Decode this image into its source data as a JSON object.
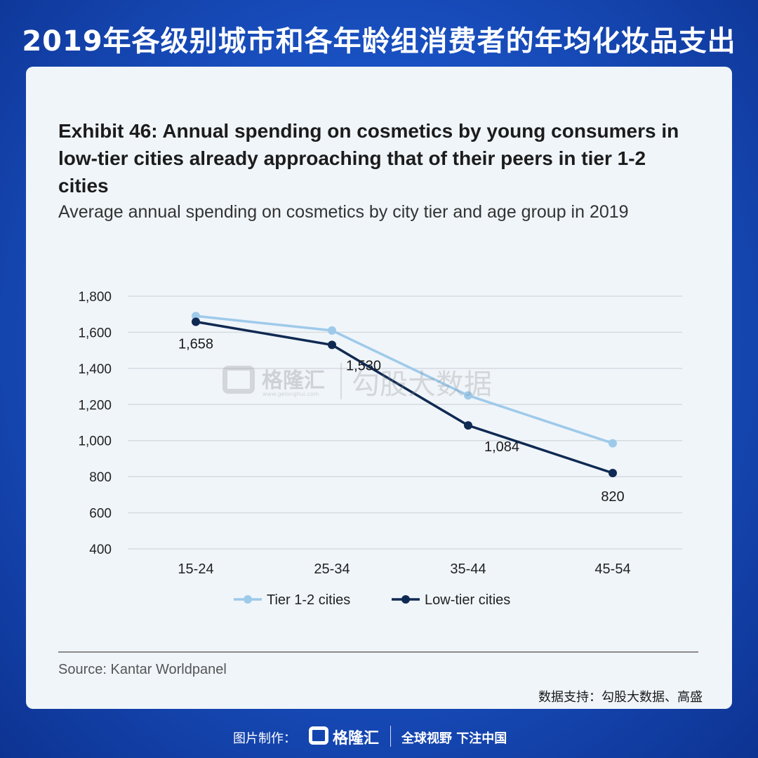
{
  "header": {
    "title": "2019年各级别城市和各年龄组消费者的年均化妆品支出"
  },
  "exhibit": {
    "title": "Exhibit 46: Annual spending on cosmetics by young consumers in low-tier cities already approaching that of their peers in tier 1-2 cities",
    "subtitle": "Average annual spending on cosmetics by city tier and age group in 2019"
  },
  "chart_data": {
    "type": "line",
    "title": "",
    "xlabel": "",
    "ylabel": "",
    "categories": [
      "15-24",
      "25-34",
      "35-44",
      "45-54"
    ],
    "ylim": [
      400,
      1800
    ],
    "yticks": [
      1800,
      1600,
      1400,
      1200,
      1000,
      800,
      600,
      400
    ],
    "ytick_labels": [
      "1,800",
      "1,600",
      "1,400",
      "1,200",
      "1,000",
      "800",
      "600",
      "400"
    ],
    "grid": true,
    "legend_position": "bottom",
    "series": [
      {
        "name": "Tier 1-2 cities",
        "values": [
          1690,
          1610,
          1250,
          985
        ],
        "color": "#9ecaea",
        "labels": null
      },
      {
        "name": "Low-tier cities",
        "values": [
          1658,
          1530,
          1084,
          820
        ],
        "color": "#0f2a52",
        "labels": [
          "1,658",
          "1,530",
          "1,084",
          "820"
        ]
      }
    ]
  },
  "source": {
    "text": "Source: Kantar Worldpanel"
  },
  "data_support": {
    "text": "数据支持：勾股大数据、高盛"
  },
  "watermark": {
    "brand": "格隆汇",
    "url": "www.gelonghui.com",
    "name": "勾股大数据"
  },
  "footer": {
    "made_by": "图片制作：",
    "brand": "格隆汇",
    "slogan": "全球视野 下注中国"
  }
}
